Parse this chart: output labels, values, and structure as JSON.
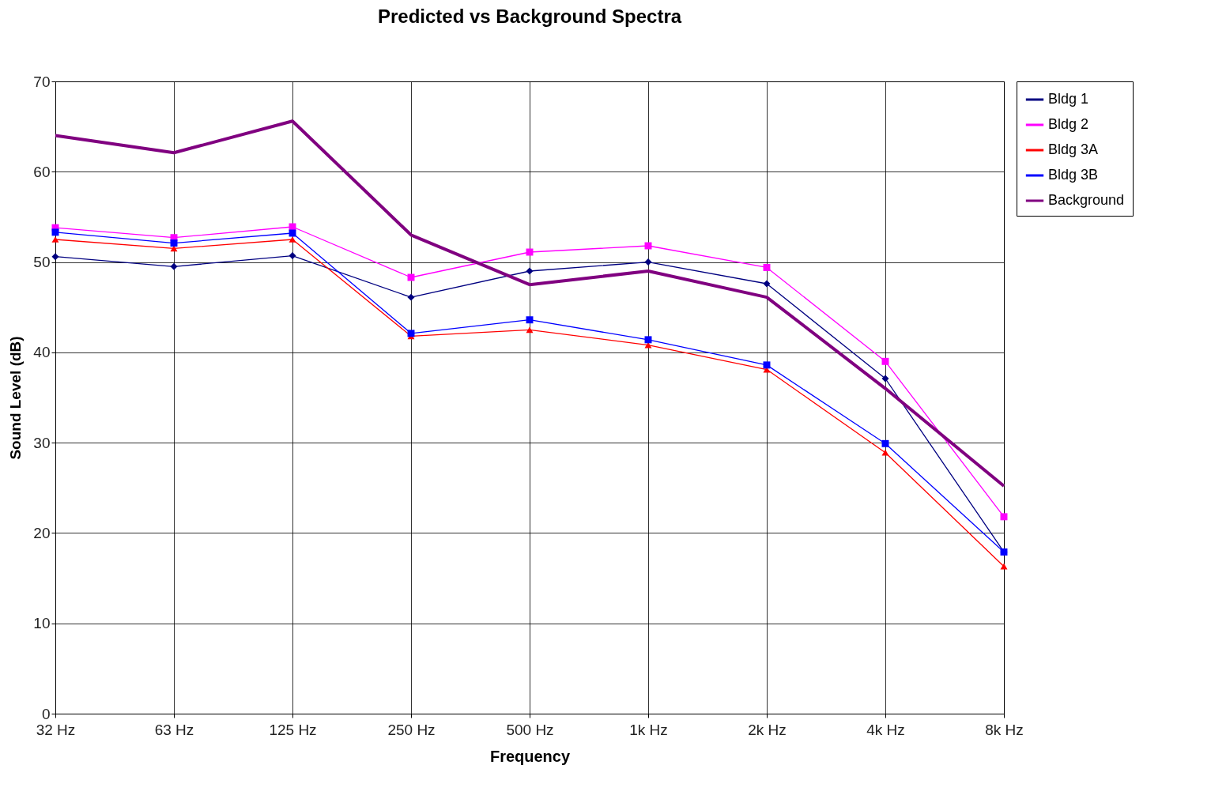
{
  "chart_data": {
    "type": "line",
    "title": "Predicted vs Background Spectra",
    "xlabel": "Frequency",
    "ylabel": "Sound Level (dB)",
    "categories": [
      "32 Hz",
      "63 Hz",
      "125 Hz",
      "250 Hz",
      "500 Hz",
      "1k Hz",
      "2k Hz",
      "4k Hz",
      "8k Hz"
    ],
    "series": [
      {
        "name": "Bldg 1",
        "color": "#000080",
        "marker": "diamond",
        "values": [
          50.6,
          49.5,
          50.7,
          46.1,
          49.0,
          50.0,
          47.6,
          37.1,
          17.9
        ]
      },
      {
        "name": "Bldg 2",
        "color": "#ff00ff",
        "marker": "square",
        "values": [
          53.8,
          52.7,
          53.9,
          48.3,
          51.1,
          51.8,
          49.4,
          39.0,
          21.8
        ]
      },
      {
        "name": "Bldg 3A",
        "color": "#ff0000",
        "marker": "triangle",
        "values": [
          52.5,
          51.5,
          52.5,
          41.8,
          42.5,
          40.8,
          38.1,
          28.9,
          16.3
        ]
      },
      {
        "name": "Bldg 3B",
        "color": "#0000ff",
        "marker": "square",
        "values": [
          53.3,
          52.1,
          53.2,
          42.1,
          43.6,
          41.4,
          38.6,
          29.9,
          17.9
        ]
      },
      {
        "name": "Background",
        "color": "#800080",
        "marker": "none",
        "values": [
          64.0,
          62.1,
          65.6,
          53.0,
          47.5,
          49.0,
          46.1,
          36.0,
          25.2
        ]
      }
    ],
    "ylim": [
      0,
      70
    ],
    "yticks": [
      0,
      10,
      20,
      30,
      40,
      50,
      60,
      70
    ],
    "grid": true,
    "legend": "right"
  }
}
